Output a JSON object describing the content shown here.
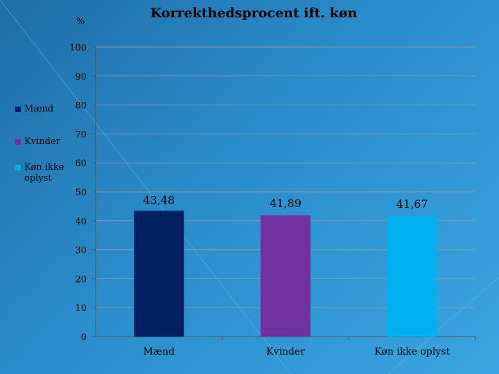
{
  "chart_data": {
    "type": "bar",
    "title": "Korrekthedsprocent ift. køn",
    "ylabel": "%",
    "xlabel": "",
    "categories": [
      "Mænd",
      "Kvinder",
      "Køn ikke oplyst"
    ],
    "values": [
      43.48,
      41.89,
      41.67
    ],
    "data_labels": [
      "43,48",
      "41,89",
      "41,67"
    ],
    "ylim": [
      0,
      100
    ],
    "yticks": [
      0,
      10,
      20,
      30,
      40,
      50,
      60,
      70,
      80,
      90,
      100
    ],
    "grid": true,
    "legend_position": "left",
    "colors": [
      "#002060",
      "#7030a0",
      "#00b0f0"
    ],
    "legend": [
      {
        "label": "Mænd",
        "color": "#002060"
      },
      {
        "label": "Kvinder",
        "color": "#7030a0"
      },
      {
        "label": "Køn ikke oplyst",
        "color": "#00b0f0"
      }
    ]
  }
}
